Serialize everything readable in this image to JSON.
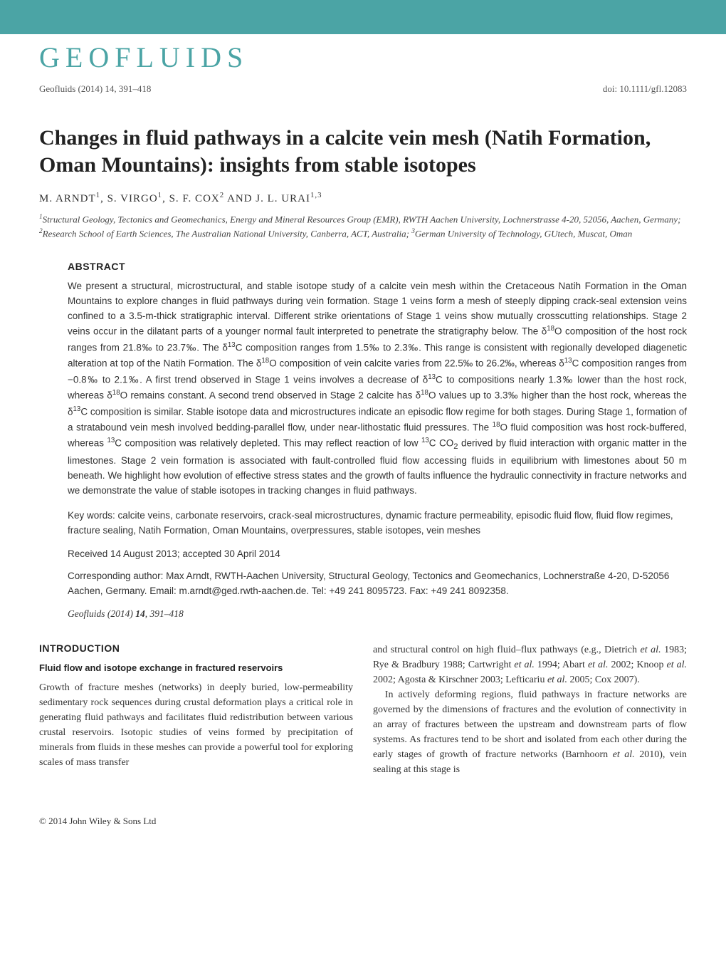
{
  "header": {
    "band_color": "#4ba4a5",
    "logo_text": "GEOFLUIDS",
    "logo_color": "#4ba4a5",
    "logo_fontsize": 40,
    "citation_left": "Geofluids (2014) 14, 391–418",
    "doi": "doi: 10.1111/gfl.12083"
  },
  "article": {
    "title": "Changes in fluid pathways in a calcite vein mesh (Natih Formation, Oman Mountains): insights from stable isotopes",
    "authors_html": "M. ARNDT<sup>1</sup>, S. VIRGO<sup>1</sup>, S. F. COX<sup>2</sup> AND J. L. URAI<sup>1,3</sup>",
    "affiliations_html": "<sup>1</sup>Structural Geology, Tectonics and Geomechanics, Energy and Mineral Resources Group (EMR), RWTH Aachen University, Lochnerstrasse 4-20, 52056, Aachen, Germany; <sup>2</sup>Research School of Earth Sciences, The Australian National University, Canberra, ACT, Australia; <sup>3</sup>German University of Technology, GUtech, Muscat, Oman"
  },
  "abstract": {
    "heading": "ABSTRACT",
    "text_html": "We present a structural, microstructural, and stable isotope study of a calcite vein mesh within the Cretaceous Natih Formation in the Oman Mountains to explore changes in fluid pathways during vein formation. Stage 1 veins form a mesh of steeply dipping crack-seal extension veins confined to a 3.5-m-thick stratigraphic interval. Different strike orientations of Stage 1 veins show mutually crosscutting relationships. Stage 2 veins occur in the dilatant parts of a younger normal fault interpreted to penetrate the stratigraphy below. The δ<sup>18</sup>O composition of the host rock ranges from 21.8‰ to 23.7‰. The δ<sup>13</sup>C composition ranges from 1.5‰ to 2.3‰. This range is consistent with regionally developed diagenetic alteration at top of the Natih Formation. The δ<sup>18</sup>O composition of vein calcite varies from 22.5‰ to 26.2‰, whereas δ<sup>13</sup>C composition ranges from −0.8‰ to 2.1‰. A first trend observed in Stage 1 veins involves a decrease of δ<sup>13</sup>C to compositions nearly 1.3‰ lower than the host rock, whereas δ<sup>18</sup>O remains constant. A second trend observed in Stage 2 calcite has δ<sup>18</sup>O values up to 3.3‰ higher than the host rock, whereas the δ<sup>13</sup>C composition is similar. Stable isotope data and microstructures indicate an episodic flow regime for both stages. During Stage 1, formation of a stratabound vein mesh involved bedding-parallel flow, under near-lithostatic fluid pressures. The <sup>18</sup>O fluid composition was host rock-buffered, whereas <sup>13</sup>C composition was relatively depleted. This may reflect reaction of low <sup>13</sup>C CO<sub>2</sub> derived by fluid interaction with organic matter in the limestones. Stage 2 vein formation is associated with fault-controlled fluid flow accessing fluids in equilibrium with limestones about 50 m beneath. We highlight how evolution of effective stress states and the growth of faults influence the hydraulic connectivity in fracture networks and we demonstrate the value of stable isotopes in tracking changes in fluid pathways.",
    "keywords": "Key words: calcite veins, carbonate reservoirs, crack-seal microstructures, dynamic fracture permeability, episodic fluid flow, fluid flow regimes, fracture sealing, Natih Formation, Oman Mountains, overpressures, stable isotopes, vein meshes",
    "dates": "Received 14 August 2013; accepted 30 April 2014",
    "corresponding": "Corresponding author: Max Arndt, RWTH-Aachen University, Structural Geology, Tectonics and Geomechanics, Lochnerstraße 4-20, D-52056 Aachen, Germany. Email: m.arndt@ged.rwth-aachen.de. Tel: +49 241 8095723. Fax: +49 241 8092358.",
    "citation_ref_html": "<i>Geofluids</i> (2014) <b>14</b>, 391–418"
  },
  "introduction": {
    "heading": "INTRODUCTION",
    "subsection": "Fluid flow and isotope exchange in fractured reservoirs",
    "col1_html": "Growth of fracture meshes (networks) in deeply buried, low-permeability sedimentary rock sequences during crustal deformation plays a critical role in generating fluid pathways and facilitates fluid redistribution between various crustal reservoirs. Isotopic studies of veins formed by precipitation of minerals from fluids in these meshes can provide a powerful tool for exploring scales of mass transfer",
    "col2_p1_html": "and structural control on high fluid–flux pathways (e.g., Dietrich <i>et al.</i> 1983; Rye & Bradbury 1988; Cartwright <i>et al.</i> 1994; Abart <i>et al.</i> 2002; Knoop <i>et al.</i> 2002; Agosta & Kirschner 2003; Lefticariu <i>et al.</i> 2005; Cox 2007).",
    "col2_p2_html": "In actively deforming regions, fluid pathways in fracture networks are governed by the dimensions of fractures and the evolution of connectivity in an array of fractures between the upstream and downstream parts of flow systems. As fractures tend to be short and isolated from each other during the early stages of growth of fracture networks (Barnhoorn <i>et al.</i> 2010), vein sealing at this stage is"
  },
  "footer": {
    "copyright": "© 2014 John Wiley & Sons Ltd"
  }
}
